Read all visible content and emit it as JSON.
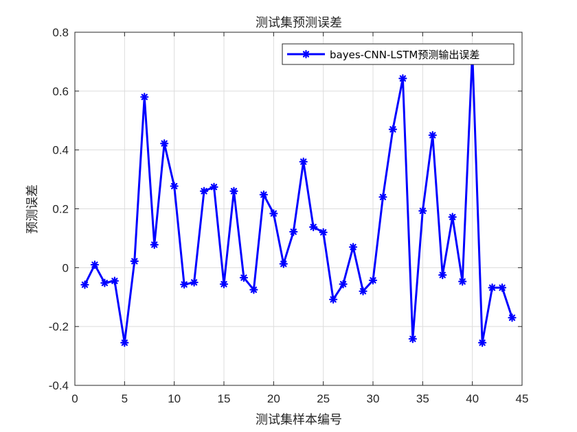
{
  "chart_data": {
    "type": "line",
    "title": "测试集预测误差",
    "xlabel": "测试集样本编号",
    "ylabel": "预测误差",
    "xlim": [
      0,
      45
    ],
    "ylim": [
      -0.4,
      0.8
    ],
    "xticks": [
      0,
      5,
      10,
      15,
      20,
      25,
      30,
      35,
      40,
      45
    ],
    "yticks": [
      -0.4,
      -0.2,
      0,
      0.2,
      0.4,
      0.6,
      0.8
    ],
    "xtick_labels": [
      "0",
      "5",
      "10",
      "15",
      "20",
      "25",
      "30",
      "35",
      "40",
      "45"
    ],
    "ytick_labels": [
      "-0.4",
      "-0.2",
      "0",
      "0.2",
      "0.4",
      "0.6",
      "0.8"
    ],
    "grid": true,
    "legend_position": "top-right",
    "x": [
      1,
      2,
      3,
      4,
      5,
      6,
      7,
      8,
      9,
      10,
      11,
      12,
      13,
      14,
      15,
      16,
      17,
      18,
      19,
      20,
      21,
      22,
      23,
      24,
      25,
      26,
      27,
      28,
      29,
      30,
      31,
      32,
      33,
      34,
      35,
      36,
      37,
      38,
      39,
      40,
      41,
      42,
      43,
      44
    ],
    "series": [
      {
        "name": "bayes-CNN-LSTM预测输出误差",
        "color": "#0000ff",
        "marker": "asterisk",
        "values": [
          -0.058,
          0.01,
          -0.052,
          -0.045,
          -0.255,
          0.022,
          0.58,
          0.078,
          0.422,
          0.277,
          -0.057,
          -0.05,
          0.26,
          0.274,
          -0.056,
          0.26,
          -0.034,
          -0.075,
          0.248,
          0.184,
          0.013,
          0.122,
          0.36,
          0.138,
          0.12,
          -0.108,
          -0.056,
          0.07,
          -0.08,
          -0.043,
          0.24,
          0.47,
          0.643,
          -0.242,
          0.193,
          0.45,
          -0.025,
          0.172,
          -0.047,
          0.73,
          -0.255,
          -0.068,
          -0.068,
          -0.17
        ]
      }
    ]
  }
}
